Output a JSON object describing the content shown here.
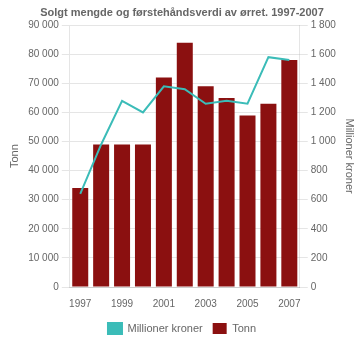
{
  "chart_data": {
    "type": "bar",
    "title": "Solgt mengde og førstehåndsverdi av ørret. 1997-2007",
    "categories": [
      "1997",
      null,
      "1999",
      null,
      "2001",
      null,
      "2003",
      null,
      "2005",
      null,
      "2007"
    ],
    "series": [
      {
        "name": "Tonn",
        "type": "bar",
        "color": "#8B1010",
        "values": [
          34000,
          49000,
          49000,
          49000,
          72000,
          84000,
          69000,
          65000,
          59000,
          63000,
          78000
        ]
      },
      {
        "name": "Millioner kroner",
        "type": "line",
        "axis": "y2",
        "color": "#3BBCB8",
        "values": [
          640,
          980,
          1280,
          1200,
          1380,
          1360,
          1260,
          1280,
          1260,
          1580,
          1560
        ]
      }
    ],
    "ylabel": "Tonn",
    "y2label": "Millioner kroner",
    "ylim": [
      0,
      90000
    ],
    "yticks": [
      0,
      {
        "value": 10000,
        "label": "10 000"
      },
      {
        "value": 20000,
        "label": "20 000"
      },
      {
        "value": 30000,
        "label": "30 000"
      },
      {
        "value": 40000,
        "label": "40 000"
      },
      {
        "value": 50000,
        "label": "50 000"
      },
      {
        "value": 60000,
        "label": "60 000"
      },
      {
        "value": 70000,
        "label": "70 000"
      },
      {
        "value": 80000,
        "label": "80 000"
      },
      {
        "value": 90000,
        "label": "90 000"
      }
    ],
    "y2lim": [
      0,
      1800
    ],
    "y2ticks": [
      0,
      200,
      400,
      600,
      800,
      {
        "value": 1000,
        "label": "1 000"
      },
      {
        "value": 1200,
        "label": "1 200"
      },
      {
        "value": 1400,
        "label": "1 400"
      },
      {
        "value": 1600,
        "label": "1 600"
      },
      {
        "value": 1800,
        "label": "1 800"
      }
    ],
    "grid": true,
    "legend": "bottom"
  }
}
